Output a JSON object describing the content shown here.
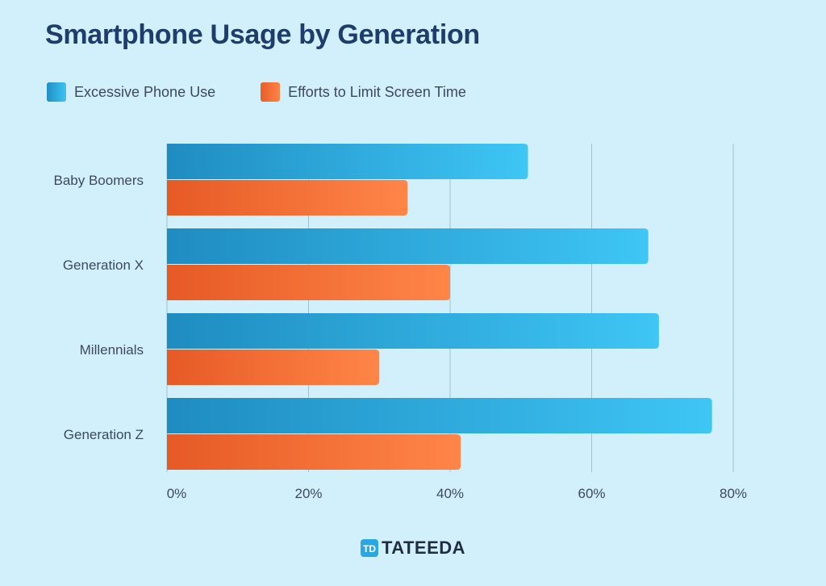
{
  "chart_data": {
    "type": "bar",
    "orientation": "horizontal",
    "title": "Smartphone Usage by Generation",
    "categories": [
      "Baby Boomers",
      "Generation X",
      "Millennials",
      "Generation Z"
    ],
    "series": [
      {
        "name": "Excessive Phone Use",
        "values": [
          51,
          68,
          69.5,
          77
        ],
        "color": "#2aaee0"
      },
      {
        "name": "Efforts to Limit Screen Time",
        "values": [
          34,
          40,
          30,
          41.5
        ],
        "color": "#f2713a"
      }
    ],
    "xlim": [
      0,
      80
    ],
    "xticks": [
      "0%",
      "20%",
      "40%",
      "60%",
      "80%"
    ],
    "grid": "vertical",
    "legend_position": "top-left"
  },
  "logo": {
    "text": "TATEEDA",
    "mark": "TD"
  }
}
